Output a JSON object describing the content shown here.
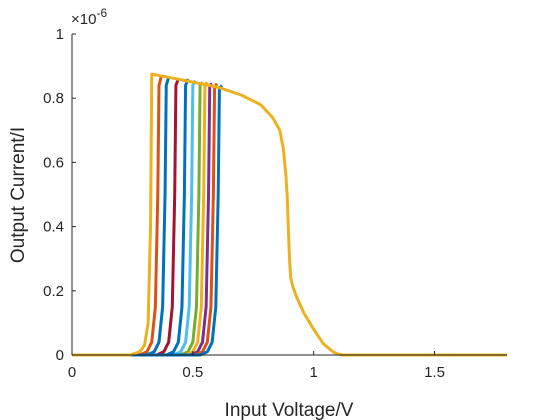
{
  "chart_data": {
    "type": "line",
    "xlabel": "Input Voltage/V",
    "ylabel": "Output Current/I",
    "y_exponent_label": "×10",
    "y_exponent_power": "-6",
    "xlim": [
      0,
      1.8
    ],
    "ylim": [
      0,
      1
    ],
    "y_scale_factor": 1e-06,
    "x_ticks": [
      0,
      0.5,
      1,
      1.5
    ],
    "x_tick_labels": [
      "0",
      "0.5",
      "1",
      "1.5"
    ],
    "y_ticks": [
      0,
      0.2,
      0.4,
      0.6,
      0.8,
      1
    ],
    "y_tick_labels": [
      "0",
      "0.2",
      "0.4",
      "0.6",
      "0.8",
      "1"
    ],
    "grid": false,
    "legend": "none",
    "series": [
      {
        "color": "#EDB120",
        "x": [
          0,
          0.24,
          0.28,
          0.3,
          0.315,
          0.325,
          0.33,
          0.4,
          0.5,
          0.6,
          0.7,
          0.78,
          0.83,
          0.86,
          0.875,
          0.885,
          0.89,
          0.9,
          0.905,
          0.915,
          0.93,
          0.96,
          1.0,
          1.04,
          1.08,
          1.1,
          1.12,
          1.2,
          1.4,
          1.6,
          1.8
        ],
        "y": [
          0,
          0,
          0.01,
          0.03,
          0.1,
          0.4,
          0.875,
          0.865,
          0.85,
          0.835,
          0.81,
          0.78,
          0.74,
          0.7,
          0.64,
          0.56,
          0.5,
          0.3,
          0.24,
          0.21,
          0.18,
          0.13,
          0.08,
          0.035,
          0.01,
          0.003,
          0,
          0,
          0,
          0,
          0
        ]
      },
      {
        "color": "#D95319",
        "x": [
          0,
          0.28,
          0.31,
          0.33,
          0.345,
          0.355,
          0.36,
          0.37
        ],
        "y": [
          0,
          0,
          0.01,
          0.04,
          0.15,
          0.5,
          0.84,
          0.87
        ]
      },
      {
        "color": "#0072BD",
        "x": [
          0,
          0.31,
          0.34,
          0.36,
          0.375,
          0.385,
          0.39,
          0.4
        ],
        "y": [
          0,
          0,
          0.01,
          0.04,
          0.15,
          0.5,
          0.84,
          0.865
        ]
      },
      {
        "color": "#A2142F",
        "x": [
          0,
          0.35,
          0.38,
          0.4,
          0.415,
          0.425,
          0.43,
          0.44
        ],
        "y": [
          0,
          0,
          0.01,
          0.04,
          0.15,
          0.5,
          0.84,
          0.86
        ]
      },
      {
        "color": "#0072BD",
        "x": [
          0,
          0.39,
          0.42,
          0.44,
          0.455,
          0.465,
          0.47,
          0.48
        ],
        "y": [
          0,
          0,
          0.01,
          0.04,
          0.15,
          0.5,
          0.84,
          0.86
        ]
      },
      {
        "color": "#4DBEEE",
        "x": [
          0,
          0.42,
          0.45,
          0.47,
          0.485,
          0.495,
          0.5,
          0.51
        ],
        "y": [
          0,
          0,
          0.01,
          0.04,
          0.15,
          0.5,
          0.84,
          0.855
        ]
      },
      {
        "color": "#77AC30",
        "x": [
          0,
          0.45,
          0.48,
          0.5,
          0.515,
          0.525,
          0.53,
          0.54
        ],
        "y": [
          0,
          0,
          0.01,
          0.04,
          0.15,
          0.5,
          0.84,
          0.85
        ]
      },
      {
        "color": "#EDB120",
        "x": [
          0,
          0.47,
          0.5,
          0.52,
          0.535,
          0.545,
          0.55,
          0.56
        ],
        "y": [
          0,
          0,
          0.01,
          0.04,
          0.15,
          0.5,
          0.84,
          0.85
        ]
      },
      {
        "color": "#7E2F8E",
        "x": [
          0,
          0.49,
          0.52,
          0.54,
          0.555,
          0.565,
          0.57,
          0.58
        ],
        "y": [
          0,
          0,
          0.01,
          0.04,
          0.15,
          0.5,
          0.84,
          0.845
        ]
      },
      {
        "color": "#D95319",
        "x": [
          0,
          0.51,
          0.54,
          0.56,
          0.575,
          0.585,
          0.59,
          0.6
        ],
        "y": [
          0,
          0,
          0.01,
          0.04,
          0.15,
          0.5,
          0.835,
          0.845
        ]
      },
      {
        "color": "#0072BD",
        "x": [
          0,
          0.53,
          0.56,
          0.58,
          0.595,
          0.605,
          0.61,
          0.62
        ],
        "y": [
          0,
          0,
          0.01,
          0.04,
          0.15,
          0.5,
          0.83,
          0.84
        ]
      }
    ]
  }
}
